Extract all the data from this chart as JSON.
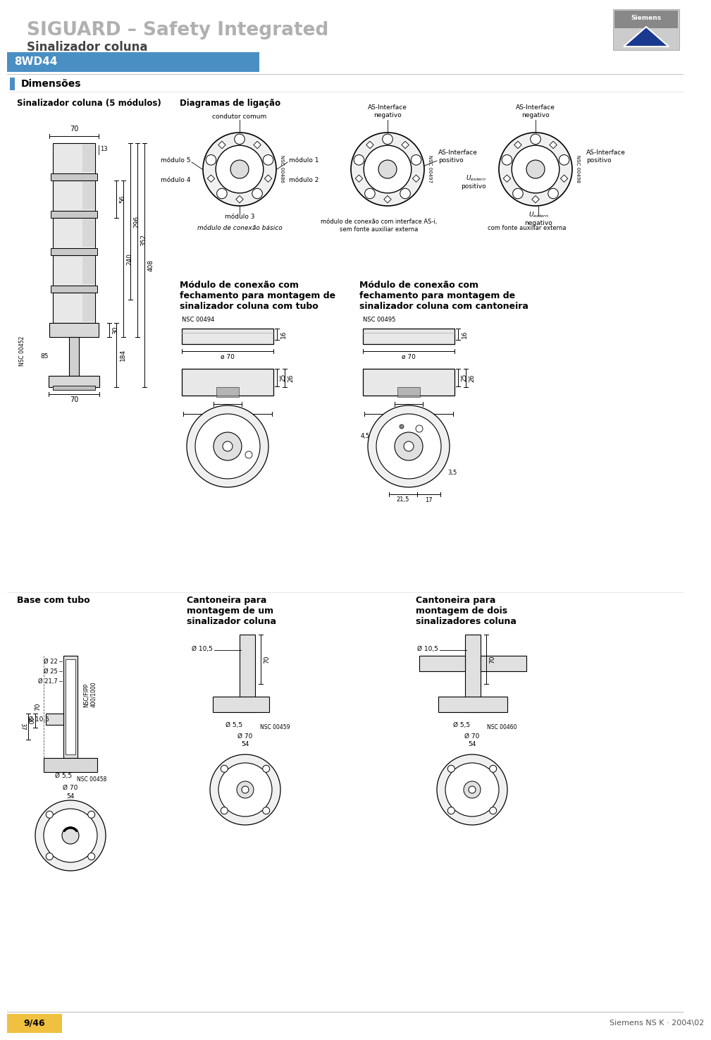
{
  "title1": "SIGUARD – Safety Integrated",
  "title2": "Sinalizador coluna",
  "subtitle": "8WD44",
  "section1": "Dimensões",
  "subsection1a": "Sinalizador coluna (5 módulos)",
  "subsection1b": "Diagramas de ligação",
  "section2_title": "Módulo de conexão com\nfechamento para montagem de\nsinalizador coluna com tubo",
  "section3_title": "Módulo de conexão com\nfechamento para montagem de\nsinalizador coluna com cantoneira",
  "section4_title": "Base com tubo",
  "section5_title": "Cantoneira para\nmontagem de um\nsinalizador coluna",
  "section6_title": "Cantoneira para\nmontagem de dois\nsinalizadores coluna",
  "bg_color": "#ffffff",
  "blue_bar": "#4a8fc4",
  "footer_text": "Siemens NS K · 2004\\02",
  "page_num": "9/46"
}
